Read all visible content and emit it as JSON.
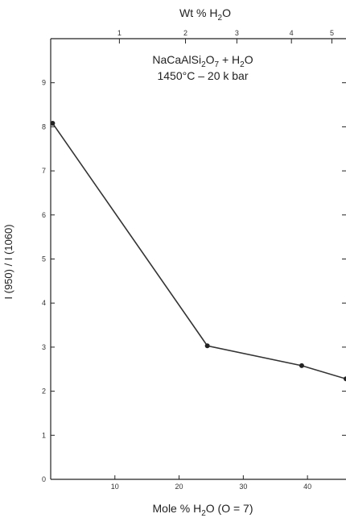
{
  "chart_data": {
    "type": "line",
    "title_line1": "NaCaAlSi",
    "title_sub1": "2",
    "title_mid": "O",
    "title_sub2": "7",
    "title_end": " + H",
    "title_sub3": "2",
    "title_tail": "O",
    "title_line2": "1450°C  –  20 k bar",
    "top_axis_label": "Wt % H",
    "top_axis_sub": "2",
    "top_axis_end": "O",
    "xlabel": "Mole % H",
    "xlabel_sub": "2",
    "xlabel_end": "O (O = 7)",
    "ylabel": "I (950) / I (1060)",
    "xlim": [
      0,
      46
    ],
    "ylim": [
      0,
      10
    ],
    "x_ticks": [
      10,
      20,
      30,
      40
    ],
    "y_ticks": [
      0,
      1,
      2,
      3,
      4,
      5,
      6,
      7,
      8,
      9
    ],
    "top_ticks": [
      {
        "label": "1",
        "mole": 10.7
      },
      {
        "label": "2",
        "mole": 21.0
      },
      {
        "label": "3",
        "mole": 29.0
      },
      {
        "label": "4",
        "mole": 37.5
      },
      {
        "label": "5",
        "mole": 43.8
      }
    ],
    "series": [
      {
        "x": [
          0.3,
          24.4,
          39.1,
          46.0
        ],
        "y": [
          8.08,
          3.03,
          2.58,
          2.28
        ]
      }
    ]
  }
}
